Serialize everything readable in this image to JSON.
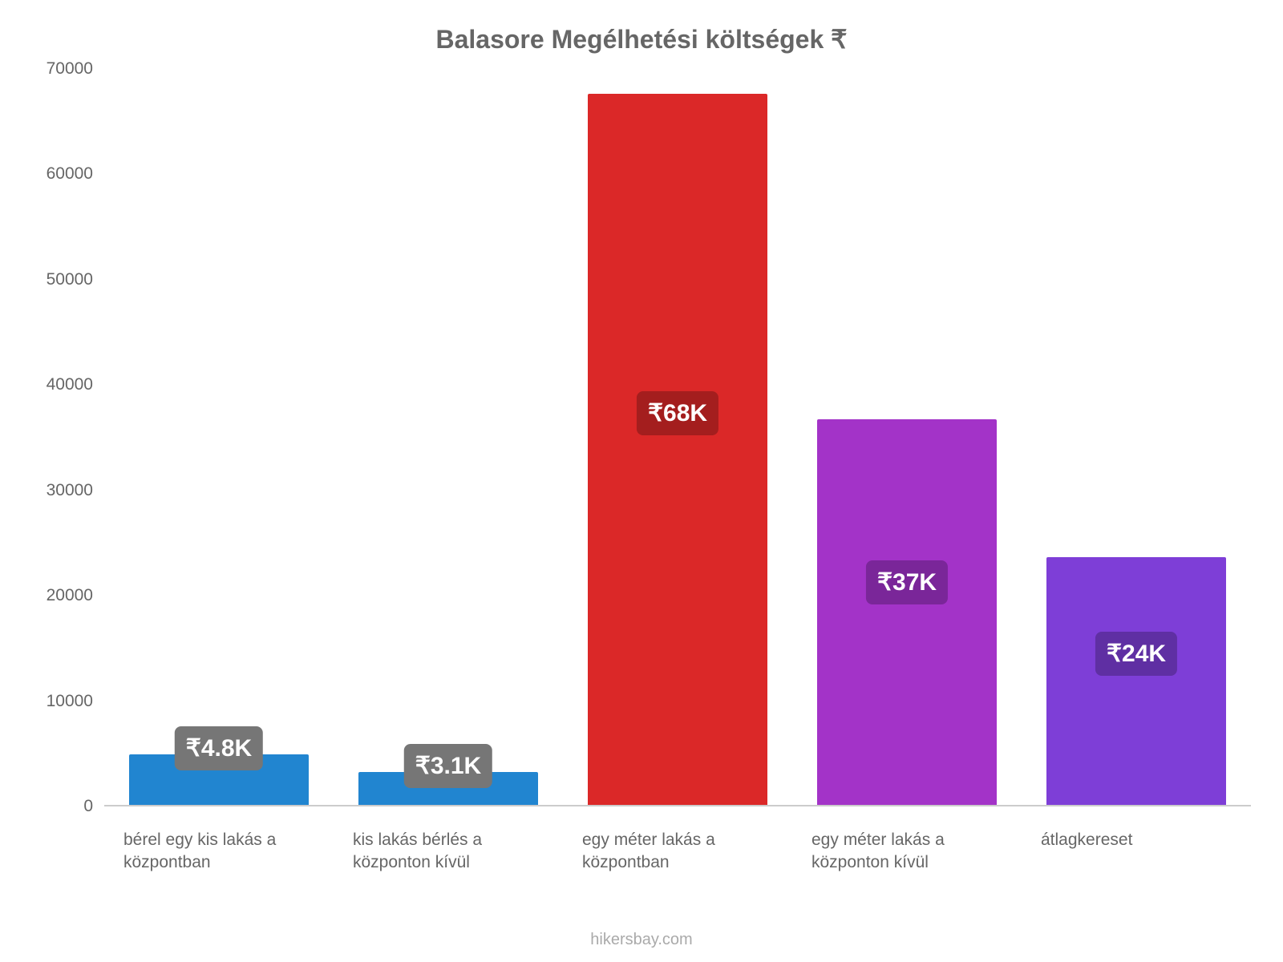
{
  "chart": {
    "type": "bar",
    "title": "Balasore Megélhetési költségek ₹",
    "title_fontsize": 32,
    "title_color": "#666666",
    "background_color": "#ffffff",
    "axis_line_color": "#cccccc",
    "label_color": "#666666",
    "label_fontsize": 21,
    "ylim_min": 0,
    "ylim_max": 70000,
    "ytick_step": 10000,
    "yticks": [
      {
        "v": 0,
        "label": "0"
      },
      {
        "v": 10000,
        "label": "10000"
      },
      {
        "v": 20000,
        "label": "20000"
      },
      {
        "v": 30000,
        "label": "30000"
      },
      {
        "v": 40000,
        "label": "40000"
      },
      {
        "v": 50000,
        "label": "50000"
      },
      {
        "v": 60000,
        "label": "60000"
      },
      {
        "v": 70000,
        "label": "70000"
      }
    ],
    "bar_width_pct": 78,
    "value_label_fontsize": 30,
    "value_label_border_radius": 8,
    "value_label_text_color": "#ffffff",
    "bars": [
      {
        "category": "bérel egy kis lakás a központban",
        "value": 4800,
        "value_label": "₹4.8K",
        "bar_color": "#2185d0",
        "label_bg": "#767676",
        "label_offset_above": true
      },
      {
        "category": "kis lakás bérlés a központon kívül",
        "value": 3100,
        "value_label": "₹3.1K",
        "bar_color": "#2185d0",
        "label_bg": "#767676",
        "label_offset_above": true
      },
      {
        "category": "egy méter lakás a központban",
        "value": 67500,
        "value_label": "₹68K",
        "bar_color": "#db2828",
        "label_bg": "#a41e1e",
        "label_offset_above": false
      },
      {
        "category": "egy méter lakás a központon kívül",
        "value": 36600,
        "value_label": "₹37K",
        "bar_color": "#a333c8",
        "label_bg": "#7a2699",
        "label_offset_above": false
      },
      {
        "category": "átlagkereset",
        "value": 23500,
        "value_label": "₹24K",
        "bar_color": "#7e3ed7",
        "label_bg": "#5f2fa3",
        "label_offset_above": false
      }
    ]
  },
  "footer": "hikersbay.com"
}
